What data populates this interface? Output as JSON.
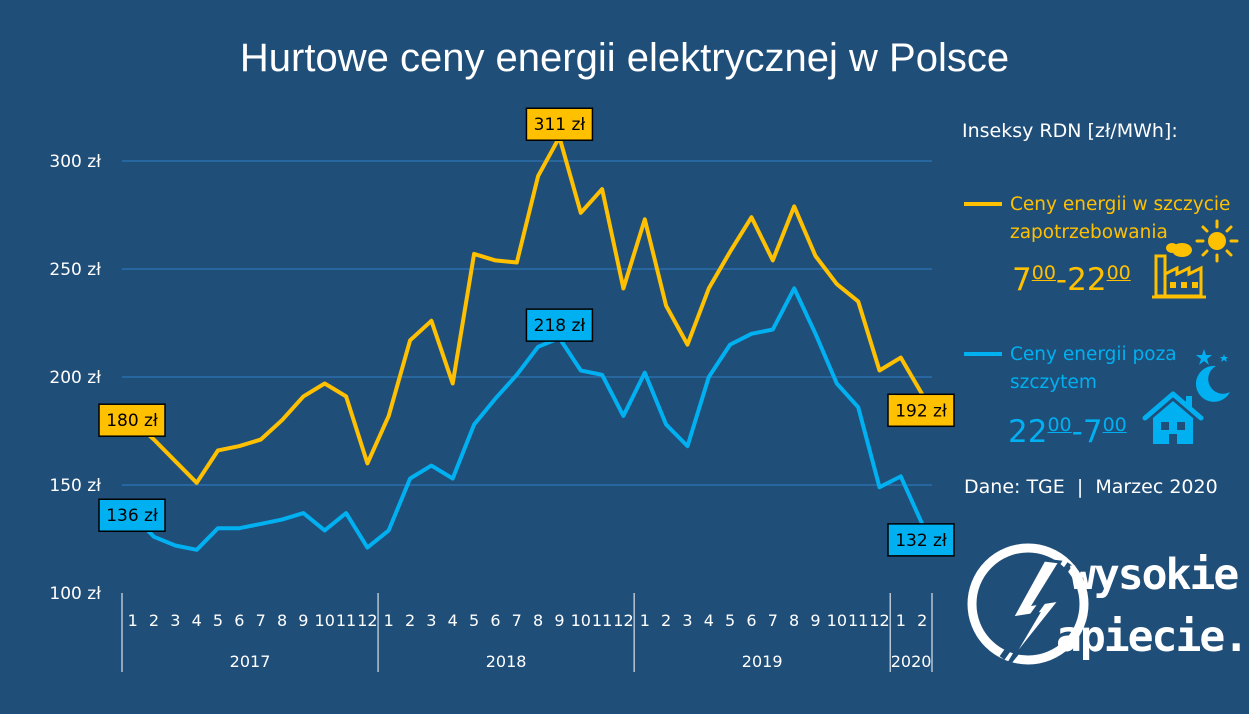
{
  "title": "Hurtowe ceny energii elektrycznej w Polsce",
  "legend": {
    "heading": "Inseksy RDN [zł/MWh]:",
    "peak": {
      "label_line1": "Ceny energii w szczycie",
      "label_line2": "zapotrzebowania",
      "hours_start": "7",
      "hours_start_sup": "00",
      "hours_sep": "-",
      "hours_end": "22",
      "hours_end_sup": "00",
      "color": "#ffc000"
    },
    "offpeak": {
      "label_line1": "Ceny energii poza",
      "label_line2": "szczytem",
      "hours_start": "22",
      "hours_start_sup": "00",
      "hours_sep": "-",
      "hours_end": "7",
      "hours_end_sup": "00",
      "color": "#00b0f0"
    }
  },
  "source": "Dane: TGE  |  Marzec 2020",
  "brand": {
    "line1": "wysokie",
    "line2": "apiecie.pl"
  },
  "icons": [
    "factory-icon",
    "sun-icon",
    "house-icon",
    "moon-icon",
    "star-icon",
    "lightning-logo-icon"
  ],
  "chart_data": {
    "type": "line",
    "ylim": [
      100,
      300
    ],
    "yticks": [
      "100 zł",
      "150 zł",
      "200 zł",
      "250 zł",
      "300 zł"
    ],
    "ytick_values": [
      100,
      150,
      200,
      250,
      300
    ],
    "grid": true,
    "months": [
      "1",
      "2",
      "3",
      "4",
      "5",
      "6",
      "7",
      "8",
      "9",
      "10",
      "11",
      "12",
      "1",
      "2",
      "3",
      "4",
      "5",
      "6",
      "7",
      "8",
      "9",
      "10",
      "11",
      "12",
      "1",
      "2",
      "3",
      "4",
      "5",
      "6",
      "7",
      "8",
      "9",
      "10",
      "11",
      "12",
      "1",
      "2"
    ],
    "years": [
      {
        "label": "2017",
        "count": 12
      },
      {
        "label": "2018",
        "count": 12
      },
      {
        "label": "2019",
        "count": 12
      },
      {
        "label": "2020",
        "count": 2
      }
    ],
    "series": [
      {
        "name": "Ceny energii w szczycie zapotrzebowania",
        "color": "#ffc000",
        "values": [
          180,
          171,
          161,
          151,
          166,
          168,
          171,
          180,
          191,
          197,
          191,
          160,
          182,
          217,
          226,
          197,
          257,
          254,
          253,
          293,
          311,
          276,
          287,
          241,
          273,
          233,
          215,
          241,
          258,
          274,
          254,
          279,
          256,
          243,
          235,
          203,
          209,
          192
        ]
      },
      {
        "name": "Ceny energii poza szczytem",
        "color": "#00b0f0",
        "values": [
          136,
          126,
          122,
          120,
          130,
          130,
          132,
          134,
          137,
          129,
          137,
          121,
          129,
          153,
          159,
          153,
          178,
          190,
          201,
          214,
          218,
          203,
          201,
          182,
          202,
          178,
          168,
          200,
          215,
          220,
          222,
          241,
          220,
          197,
          186,
          149,
          154,
          132
        ]
      }
    ],
    "callouts": [
      {
        "series": 0,
        "index": 0,
        "text": "180 zł"
      },
      {
        "series": 0,
        "index": 20,
        "text": "311 zł"
      },
      {
        "series": 0,
        "index": 37,
        "text": "192 zł"
      },
      {
        "series": 1,
        "index": 0,
        "text": "136 zł"
      },
      {
        "series": 1,
        "index": 20,
        "text": "218 zł"
      },
      {
        "series": 1,
        "index": 37,
        "text": "132 zł"
      }
    ]
  }
}
